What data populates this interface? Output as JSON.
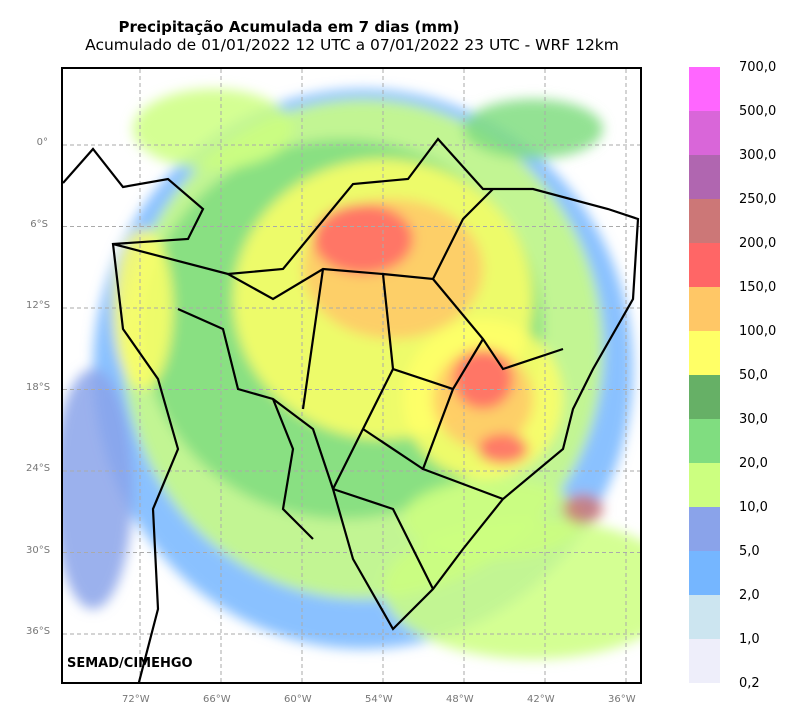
{
  "title": "Precipitação Acumulada em 7 dias (mm)",
  "subtitle": "Acumulado de 01/01/2022 12 UTC a 07/01/2022 23 UTC - WRF 12km",
  "credit": "SEMAD/CIMEHGO",
  "lat_labels": [
    "0°",
    "6°S",
    "12°S",
    "18°S",
    "24°S",
    "30°S",
    "36°S"
  ],
  "lon_labels": [
    "72°W",
    "66°W",
    "60°W",
    "54°W",
    "48°W",
    "42°W",
    "36°W"
  ],
  "colorbar": {
    "labels": [
      "700,0",
      "500,0",
      "300,0",
      "250,0",
      "200,0",
      "150,0",
      "100,0",
      "50,0",
      "30,0",
      "20,0",
      "10,0",
      "5,0",
      "2,0",
      "1,0",
      "0,2"
    ],
    "colors": [
      "#ff66ff",
      "#d966d9",
      "#b066b0",
      "#cc7777",
      "#ff6666",
      "#ffc766",
      "#ffff66",
      "#66b066",
      "#80dd80",
      "#ccff80",
      "#8aa3ea",
      "#75b6ff",
      "#cce5f0",
      "#eeeefa"
    ]
  }
}
